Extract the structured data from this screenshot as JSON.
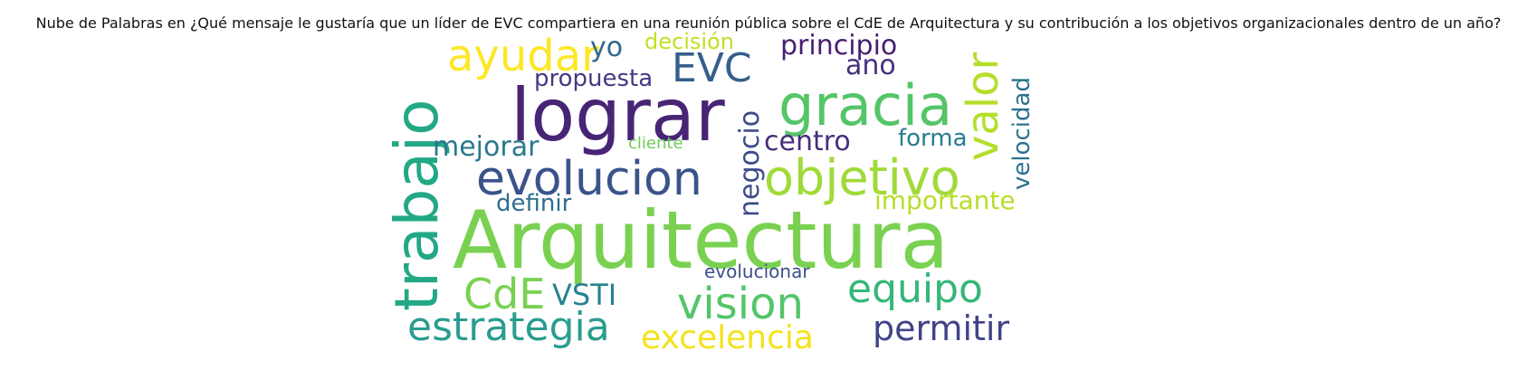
{
  "title": "Nube de Palabras en ¿Qué mensaje le gustaría que un líder de EVC compartiera en una reunión pública sobre el CdE de Arquitectura y su contribución a los objetivos organizacionales dentro de un año?",
  "words": {
    "arquitectura": {
      "text": "Arquitectura",
      "color": "#7ad151"
    },
    "lograr": {
      "text": "lograr",
      "color": "#482475"
    },
    "trabajo": {
      "text": "trabajo",
      "color": "#22a884"
    },
    "gracia": {
      "text": "gracia",
      "color": "#54c568"
    },
    "evolucion": {
      "text": "evolucion",
      "color": "#3b528b"
    },
    "objetivo": {
      "text": "objetivo",
      "color": "#a0da39"
    },
    "vision": {
      "text": "vision",
      "color": "#54c568"
    },
    "ayudar": {
      "text": "ayudar",
      "color": "#fde725"
    },
    "estrategia": {
      "text": "estrategia",
      "color": "#2a9d8f"
    },
    "valor": {
      "text": "valor",
      "color": "#b5de2b"
    },
    "equipo": {
      "text": "equipo",
      "color": "#35b779"
    },
    "cde": {
      "text": "CdE",
      "color": "#7ad151"
    },
    "evc": {
      "text": "EVC",
      "color": "#355f8d"
    },
    "permitir": {
      "text": "permitir",
      "color": "#414487"
    },
    "excelencia": {
      "text": "excelencia",
      "color": "#f4e21d"
    },
    "principio": {
      "text": "principio",
      "color": "#481f70"
    },
    "negocio": {
      "text": "negocio",
      "color": "#3e4c8a"
    },
    "centro": {
      "text": "centro",
      "color": "#472d7b"
    },
    "vsti": {
      "text": "VSTI",
      "color": "#25838e"
    },
    "mejorar": {
      "text": "mejorar",
      "color": "#2a788e"
    },
    "importante": {
      "text": "importante",
      "color": "#b8de29"
    },
    "velocidad": {
      "text": "velocidad",
      "color": "#2c728e"
    },
    "yo": {
      "text": "yo",
      "color": "#31688e"
    },
    "ano": {
      "text": "ano",
      "color": "#46307e"
    },
    "propuesta": {
      "text": "propuesta",
      "color": "#443983"
    },
    "decision": {
      "text": "decisión",
      "color": "#c2df23"
    },
    "forma": {
      "text": "forma",
      "color": "#287d8e"
    },
    "definir": {
      "text": "definir",
      "color": "#2e6f8e"
    },
    "cliente": {
      "text": "cliente",
      "color": "#6ccd5a"
    },
    "evolucionar": {
      "text": "evolucionar",
      "color": "#3d4e8a"
    }
  }
}
